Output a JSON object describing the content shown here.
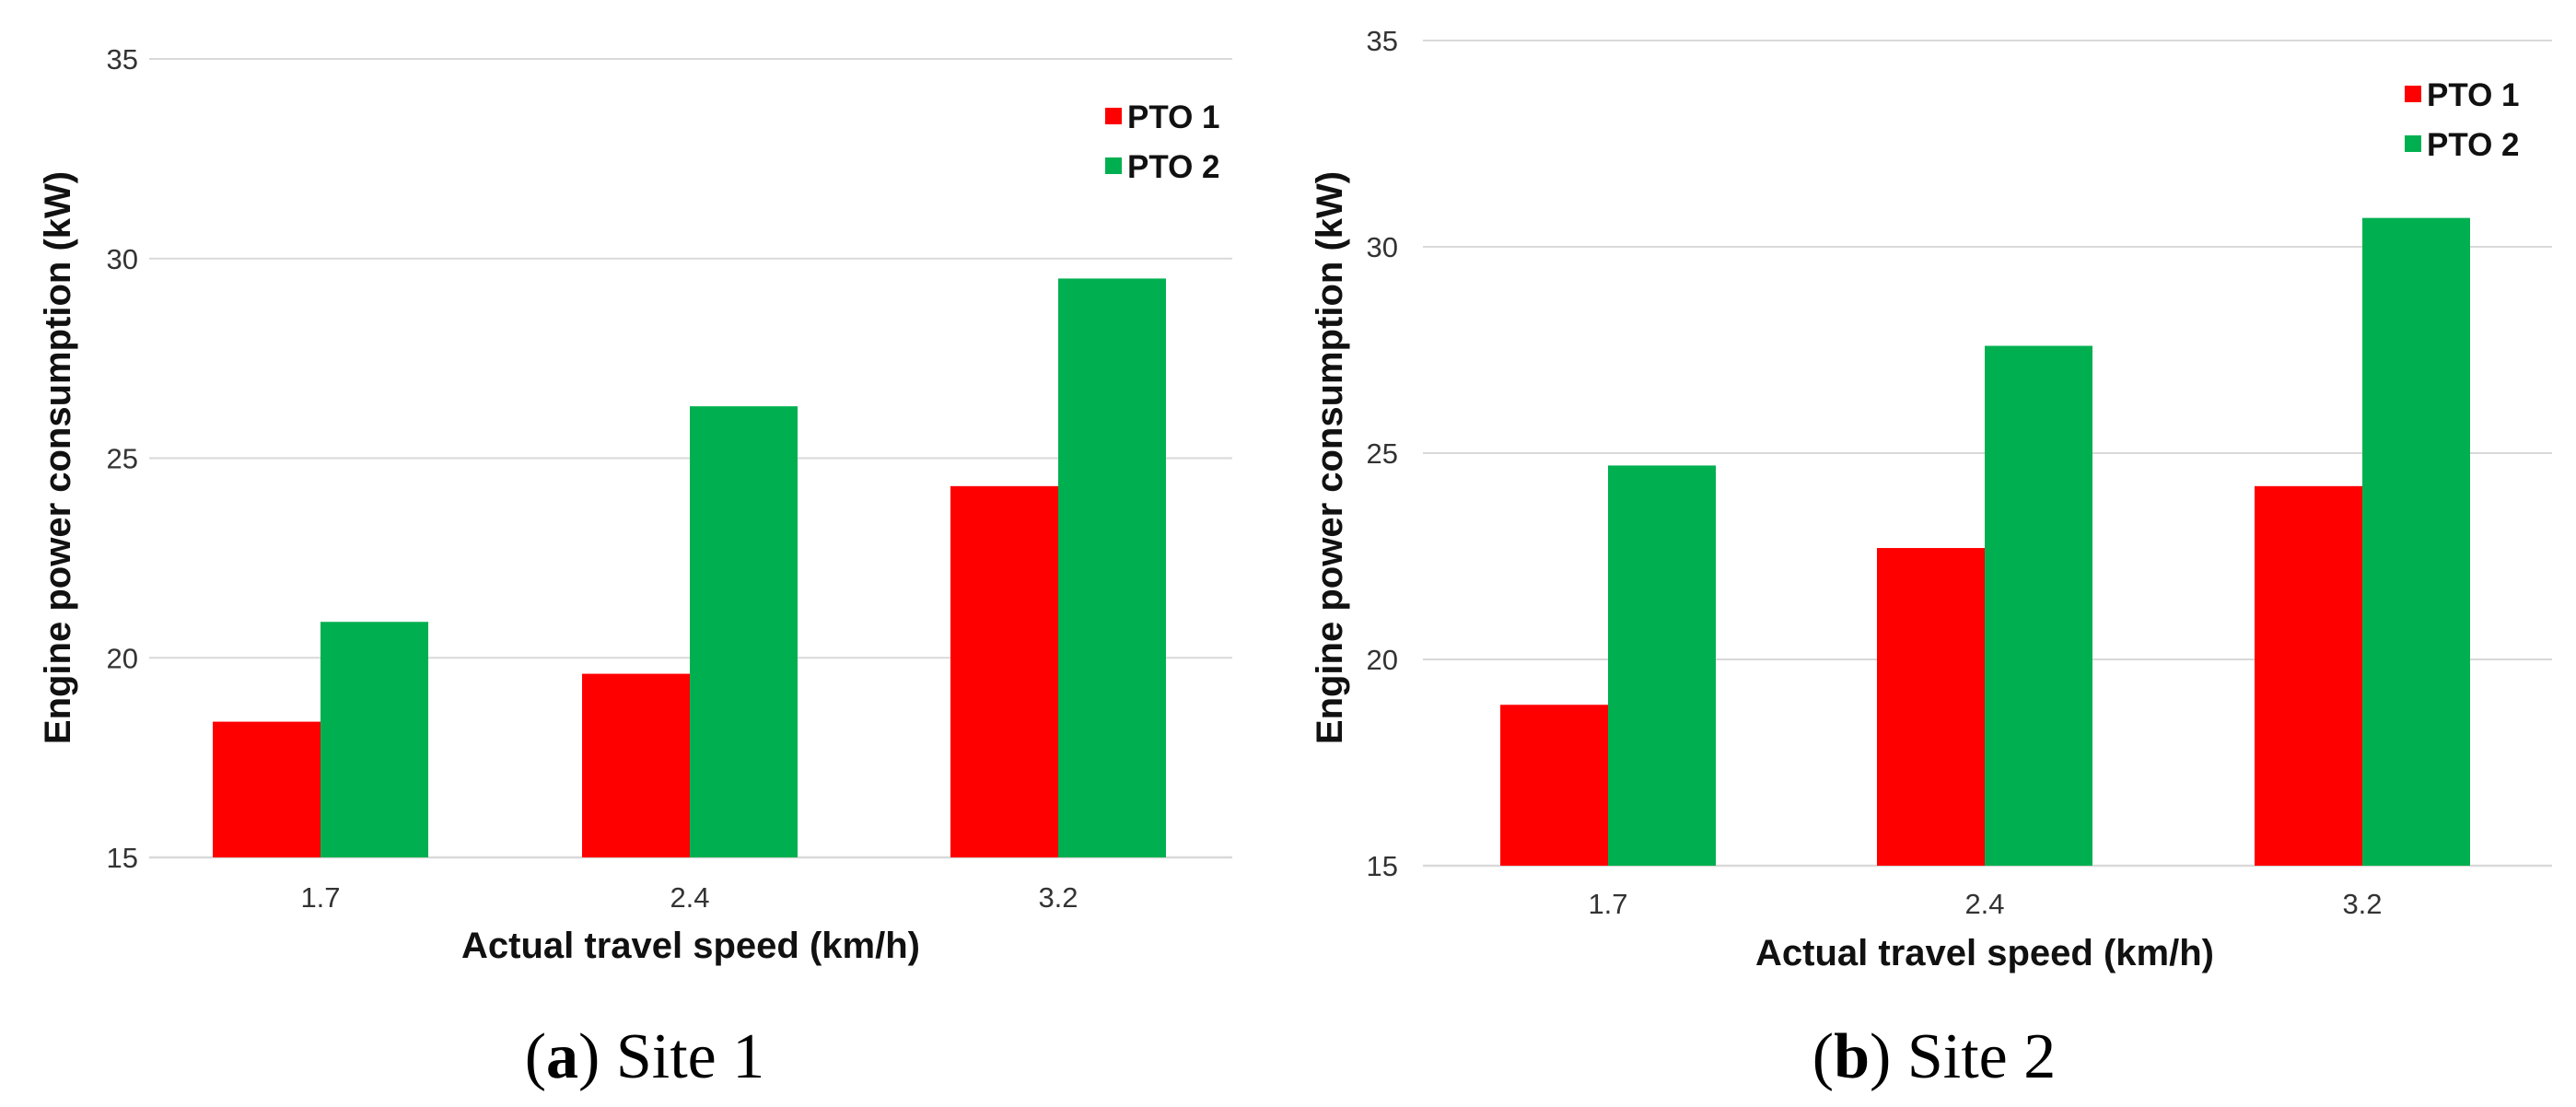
{
  "chart_data": [
    {
      "type": "bar",
      "categories": [
        "1.7",
        "2.4",
        "3.2"
      ],
      "series": [
        {
          "name": "PTO 1",
          "values": [
            18.4,
            19.6,
            24.3
          ]
        },
        {
          "name": "PTO 2",
          "values": [
            20.9,
            26.3,
            29.5
          ]
        }
      ],
      "title": "",
      "xlabel": "Actual travel speed (km/h)",
      "ylabel": "Engine power consumption (kW)",
      "ylim": [
        15,
        35
      ],
      "yticks": [
        "15",
        "20",
        "25",
        "30",
        "35"
      ],
      "grid": true,
      "legend": "top-right",
      "caption": {
        "letter": "a",
        "text": " Site 1"
      }
    },
    {
      "type": "bar",
      "categories": [
        "1.7",
        "2.4",
        "3.2"
      ],
      "series": [
        {
          "name": "PTO 1",
          "values": [
            18.9,
            22.7,
            24.2
          ]
        },
        {
          "name": "PTO 2",
          "values": [
            24.7,
            27.6,
            30.7
          ]
        }
      ],
      "title": "",
      "xlabel": "Actual travel speed (km/h)",
      "ylabel": "Engine power consumption (kW)",
      "ylim": [
        15,
        35
      ],
      "yticks": [
        "15",
        "20",
        "25",
        "30",
        "35"
      ],
      "grid": true,
      "legend": "top-right",
      "caption": {
        "letter": "b",
        "text": " Site 2"
      }
    }
  ],
  "colors": {
    "PTO 1": "#ff0000",
    "PTO 2": "#00b050",
    "grid": "#d9d9d9"
  }
}
